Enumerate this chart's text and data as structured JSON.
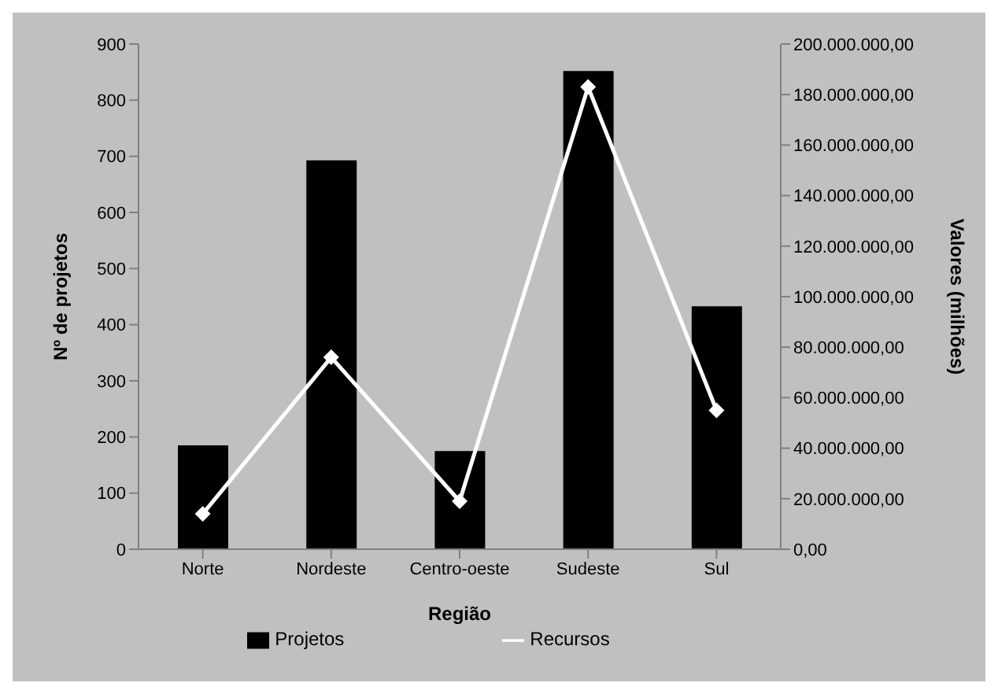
{
  "chart_data": {
    "type": "bar",
    "xlabel": "Região",
    "ylabel": "Nº de projetos",
    "y2label": "Valores (milhões)",
    "categories": [
      "Norte",
      "Nordeste",
      "Centro-oeste",
      "Sudeste",
      "Sul"
    ],
    "series": [
      {
        "name": "Projetos",
        "color": "#000000",
        "values": [
          185,
          693,
          175,
          852,
          433
        ]
      },
      {
        "name": "Recursos",
        "type": "line",
        "axis": "y2",
        "color": "#ffffff",
        "marker": "diamond",
        "values": [
          14000000,
          76000000,
          19000000,
          183000000,
          55000000
        ]
      }
    ],
    "ylim": [
      0,
      900
    ],
    "yticks": [
      0,
      100,
      200,
      300,
      400,
      500,
      600,
      700,
      800,
      900
    ],
    "y2lim": [
      0,
      200000000
    ],
    "y2ticks": [
      {
        "value": 0,
        "label": "0,00"
      },
      {
        "value": 20000000,
        "label": "20.000.000,00"
      },
      {
        "value": 40000000,
        "label": "40.000.000,00"
      },
      {
        "value": 60000000,
        "label": "60.000.000,00"
      },
      {
        "value": 80000000,
        "label": "80.000.000,00"
      },
      {
        "value": 100000000,
        "label": "100.000.000,00"
      },
      {
        "value": 120000000,
        "label": "120.000.000,00"
      },
      {
        "value": 140000000,
        "label": "140.000.000,00"
      },
      {
        "value": 160000000,
        "label": "160.000.000,00"
      },
      {
        "value": 180000000,
        "label": "180.000.000,00"
      },
      {
        "value": 200000000,
        "label": "200.000.000,00"
      }
    ],
    "legend": "bottom"
  }
}
